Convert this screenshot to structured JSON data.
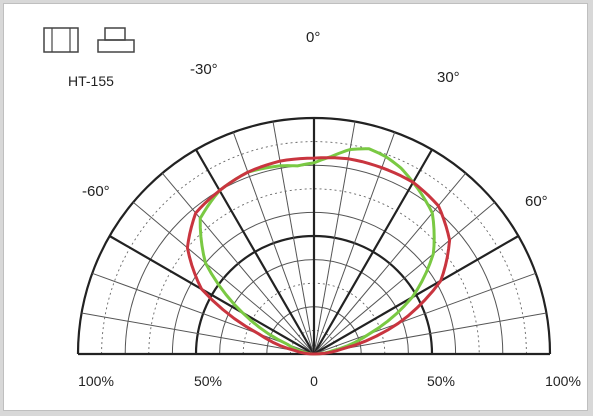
{
  "chart_data": {
    "type": "polar-line",
    "label": "HT-155",
    "angle_labels": [
      "-60°",
      "-30°",
      "0°",
      "30°",
      "60°"
    ],
    "radial_labels": [
      "100%",
      "50%",
      "0",
      "50%",
      "100%"
    ],
    "angular_range_deg": [
      -90,
      90
    ],
    "radial_range_percent": [
      0,
      100
    ],
    "colors": {
      "series_1": "#7ac943",
      "series_2": "#c9353f"
    },
    "series": [
      {
        "color": "#7ac943",
        "angles_deg": [
          -90,
          -80,
          -70,
          -60,
          -50,
          -40,
          -30,
          -20,
          -10,
          -5,
          0,
          5,
          10,
          15,
          20,
          25,
          30,
          40,
          50,
          60,
          70,
          80,
          90
        ],
        "values_percent": [
          0,
          4,
          12,
          35,
          60,
          75,
          80,
          82,
          81,
          80,
          81,
          84,
          88,
          90,
          89,
          87,
          84,
          78,
          66,
          48,
          25,
          8,
          0
        ]
      },
      {
        "color": "#c9353f",
        "angles_deg": [
          -90,
          -80,
          -70,
          -60,
          -50,
          -40,
          -30,
          -20,
          -10,
          0,
          10,
          20,
          30,
          40,
          50,
          60,
          70,
          80,
          90
        ],
        "values_percent": [
          0,
          8,
          25,
          55,
          70,
          78,
          80,
          82,
          83,
          83,
          84,
          84,
          84,
          82,
          75,
          62,
          38,
          12,
          0
        ]
      }
    ]
  },
  "icons": [
    "front-view-icon",
    "side-view-icon"
  ]
}
